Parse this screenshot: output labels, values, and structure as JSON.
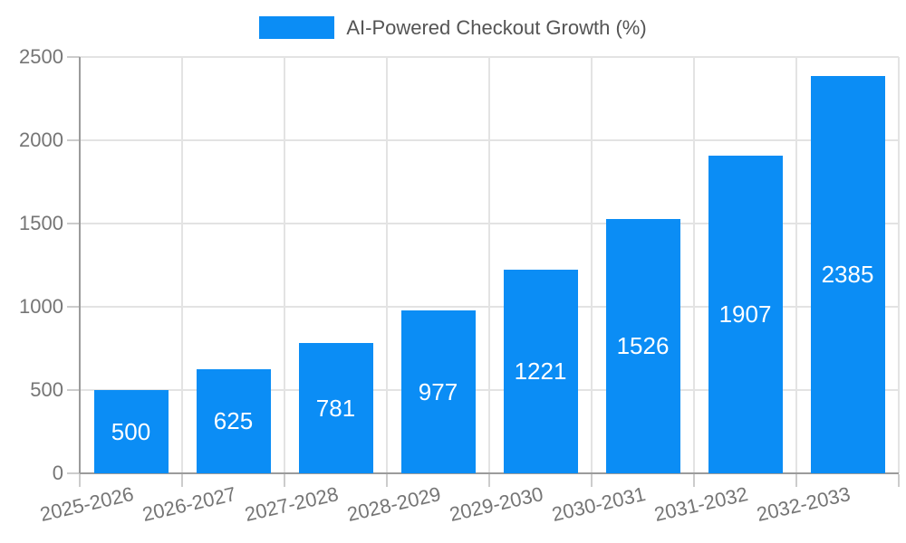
{
  "chart_data": {
    "type": "bar",
    "title": "AI-Powered Checkout Growth (%)",
    "categories": [
      "2025-2026",
      "2026-2027",
      "2027-2028",
      "2028-2029",
      "2029-2030",
      "2030-2031",
      "2031-2032",
      "2032-2033"
    ],
    "values": [
      500,
      625,
      781,
      977,
      1221,
      1526,
      1907,
      2385
    ],
    "xlabel": "",
    "ylabel": "",
    "ylim": [
      0,
      2500
    ],
    "yticks": [
      0,
      500,
      1000,
      1500,
      2000,
      2500
    ],
    "grid": true,
    "legend_position": "top-center",
    "legend_entries": [
      "AI-Powered Checkout Growth (%)"
    ],
    "bar_value_labels": [
      "500",
      "625",
      "781",
      "977",
      "1221",
      "1526",
      "1907",
      "2385"
    ]
  },
  "colors": {
    "bar": "#0b8df5",
    "bar_value_text": "#ffffff",
    "axis_text": "#757575",
    "legend_text": "#545454",
    "gridline": "#e3e3e3",
    "spine": "#9b9b9b",
    "tick_mark": "#cccccc",
    "background": "#ffffff"
  }
}
